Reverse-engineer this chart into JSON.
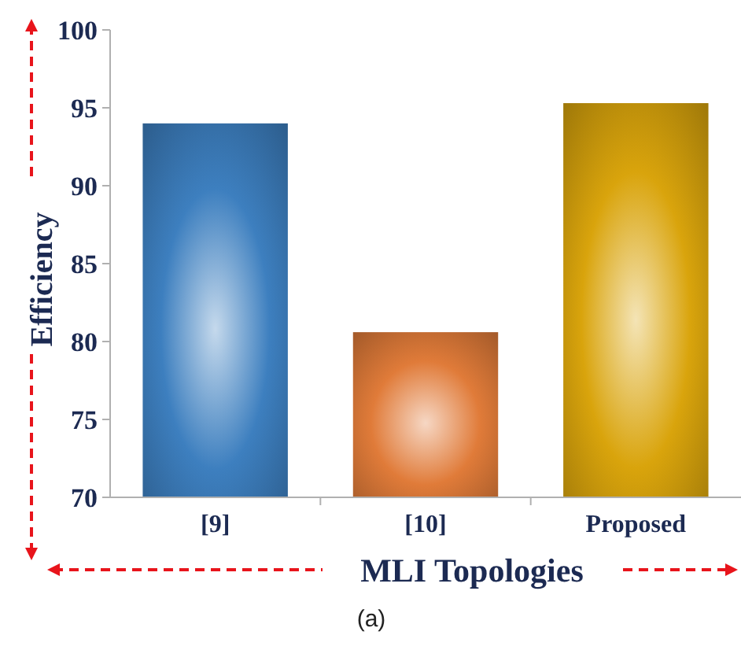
{
  "chart_data": {
    "type": "bar",
    "xlabel": "MLI Topologies",
    "ylabel": "Efficiency",
    "categories": [
      "[9]",
      "[10]",
      "Proposed"
    ],
    "values": [
      94.0,
      80.6,
      95.3
    ],
    "colors": [
      "#3d7fbf",
      "#e07b39",
      "#d9a40c"
    ],
    "ylim": [
      70,
      100
    ],
    "yticks": [
      70,
      75,
      80,
      85,
      90,
      95,
      100
    ],
    "grid": false,
    "annotations": [
      "(a)"
    ]
  }
}
